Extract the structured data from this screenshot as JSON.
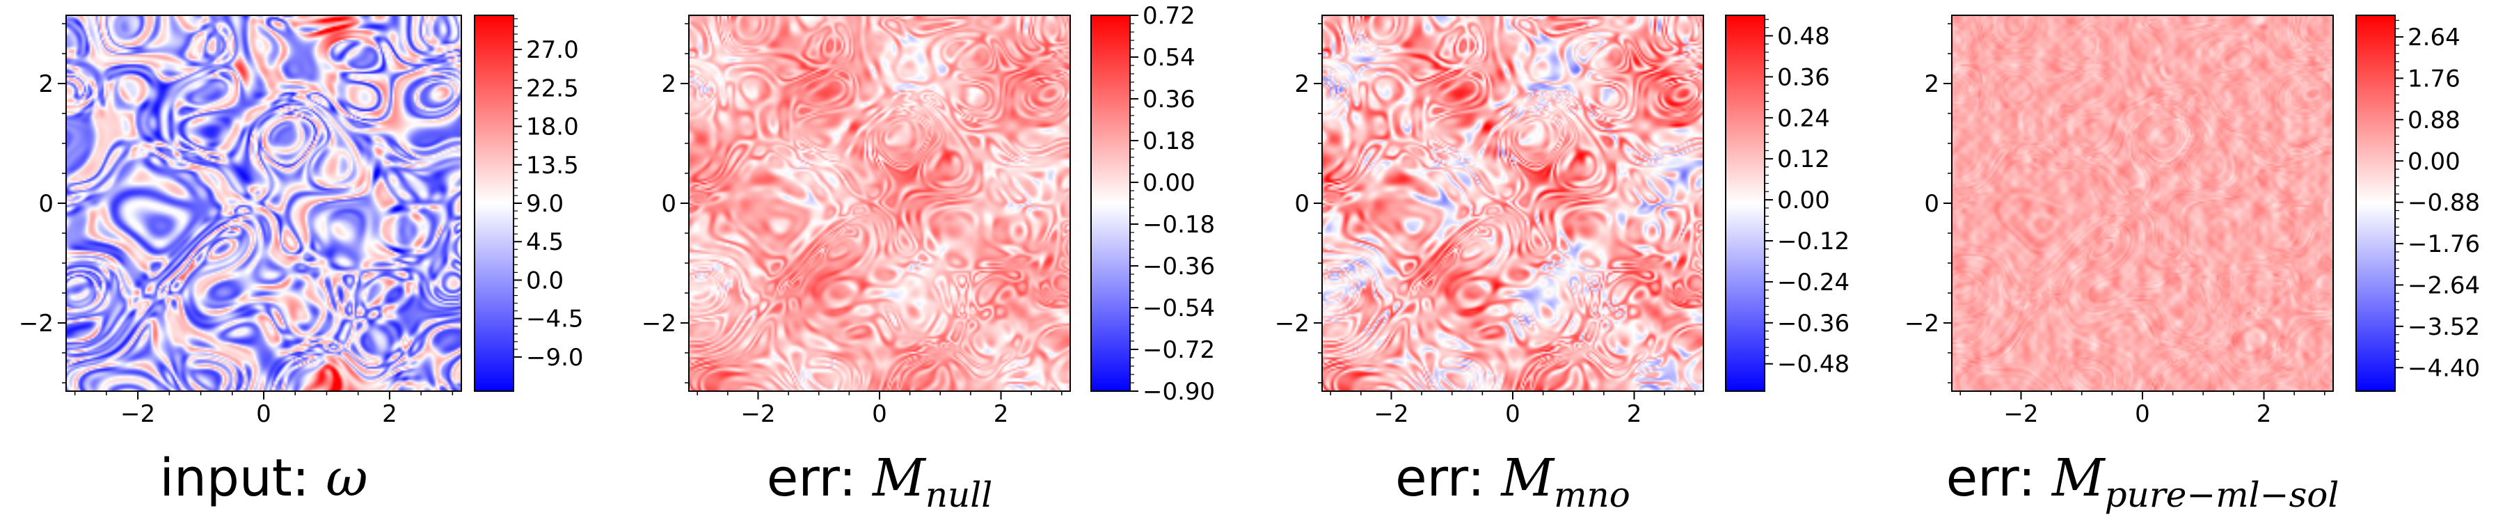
{
  "chart_data": [
    {
      "type": "heatmap",
      "title_prefix": "input: ",
      "title_symbol": "ω",
      "title_subscript": "",
      "x_ticks": [
        -2,
        0,
        2
      ],
      "y_ticks": [
        -2,
        0,
        2
      ],
      "xlim": [
        -3.14,
        3.14
      ],
      "ylim": [
        -3.14,
        3.14
      ],
      "colorbar": {
        "range": [
          -13.0,
          31.0
        ],
        "ticks": [
          27.0,
          22.5,
          18.0,
          13.5,
          9.0,
          4.5,
          0.0,
          -4.5,
          -9.0
        ],
        "labels": [
          "27.0",
          "22.5",
          "18.0",
          "13.5",
          "9.0",
          "4.5",
          "0.0",
          "−4.5",
          "−9.0"
        ]
      },
      "colormap": "bwr",
      "field": "vorticity"
    },
    {
      "type": "heatmap",
      "title_prefix": "err: ",
      "title_symbol": "M",
      "title_subscript": "null",
      "x_ticks": [
        -2,
        0,
        2
      ],
      "y_ticks": [
        -2,
        0,
        2
      ],
      "xlim": [
        -3.14,
        3.14
      ],
      "ylim": [
        -3.14,
        3.14
      ],
      "colorbar": {
        "range": [
          -0.9,
          0.72
        ],
        "ticks": [
          0.72,
          0.54,
          0.36,
          0.18,
          0.0,
          -0.18,
          -0.36,
          -0.54,
          -0.72,
          -0.9
        ],
        "labels": [
          "0.72",
          "0.54",
          "0.36",
          "0.18",
          "0.00",
          "−0.18",
          "−0.36",
          "−0.54",
          "−0.72",
          "−0.90"
        ]
      },
      "colormap": "bwr",
      "field": "error"
    },
    {
      "type": "heatmap",
      "title_prefix": "err: ",
      "title_symbol": "M",
      "title_subscript": "mno",
      "x_ticks": [
        -2,
        0,
        2
      ],
      "y_ticks": [
        -2,
        0,
        2
      ],
      "xlim": [
        -3.14,
        3.14
      ],
      "ylim": [
        -3.14,
        3.14
      ],
      "colorbar": {
        "range": [
          -0.56,
          0.54
        ],
        "ticks": [
          0.48,
          0.36,
          0.24,
          0.12,
          0.0,
          -0.12,
          -0.24,
          -0.36,
          -0.48
        ],
        "labels": [
          "0.48",
          "0.36",
          "0.24",
          "0.12",
          "0.00",
          "−0.12",
          "−0.24",
          "−0.36",
          "−0.48"
        ]
      },
      "colormap": "bwr",
      "field": "error"
    },
    {
      "type": "heatmap",
      "title_prefix": "err: ",
      "title_symbol": "M",
      "title_subscript": "pure−ml−sol",
      "x_ticks": [
        -2,
        0,
        2
      ],
      "y_ticks": [
        -2,
        0,
        2
      ],
      "xlim": [
        -3.14,
        3.14
      ],
      "ylim": [
        -3.14,
        3.14
      ],
      "colorbar": {
        "range": [
          -4.9,
          3.1
        ],
        "ticks": [
          2.64,
          1.76,
          0.88,
          0.0,
          -0.88,
          -1.76,
          -2.64,
          -3.52,
          -4.4
        ],
        "labels": [
          "2.64",
          "1.76",
          "0.88",
          "0.00",
          "−0.88",
          "−1.76",
          "−2.64",
          "−3.52",
          "−4.40"
        ]
      },
      "colormap": "bwr",
      "field": "error"
    }
  ]
}
